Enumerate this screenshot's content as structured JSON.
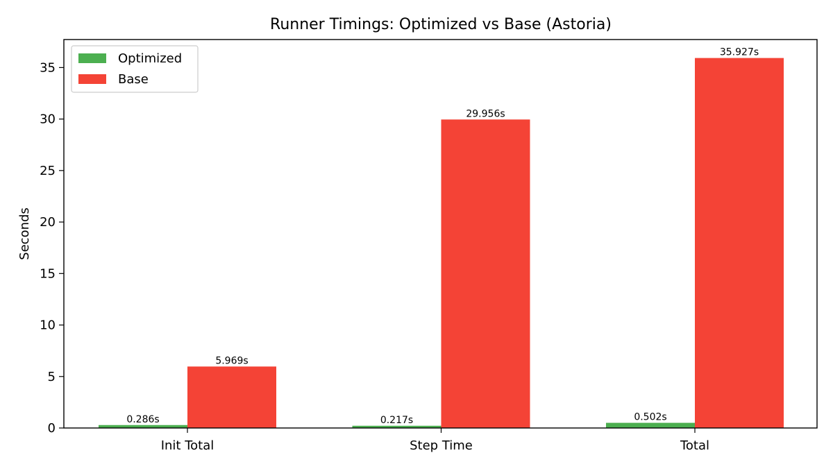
{
  "chart_data": {
    "type": "bar",
    "title": "Runner Timings: Optimized vs Base (Astoria)",
    "xlabel": "",
    "ylabel": "Seconds",
    "categories": [
      "Init Total",
      "Step Time",
      "Total"
    ],
    "series": [
      {
        "name": "Optimized",
        "color": "#4caf50",
        "values": [
          0.286,
          0.217,
          0.502
        ],
        "labels": [
          "0.286s",
          "0.217s",
          "0.502s"
        ]
      },
      {
        "name": "Base",
        "color": "#f44336",
        "values": [
          5.969,
          29.956,
          35.927
        ],
        "labels": [
          "5.969s",
          "29.956s",
          "35.927s"
        ]
      }
    ],
    "ylim": [
      0,
      37.72
    ],
    "yticks": [
      0,
      5,
      10,
      15,
      20,
      25,
      30,
      35
    ],
    "ytick_labels": [
      "0",
      "5",
      "10",
      "15",
      "20",
      "25",
      "30",
      "35"
    ],
    "grid": false,
    "legend_position": "top-left"
  }
}
